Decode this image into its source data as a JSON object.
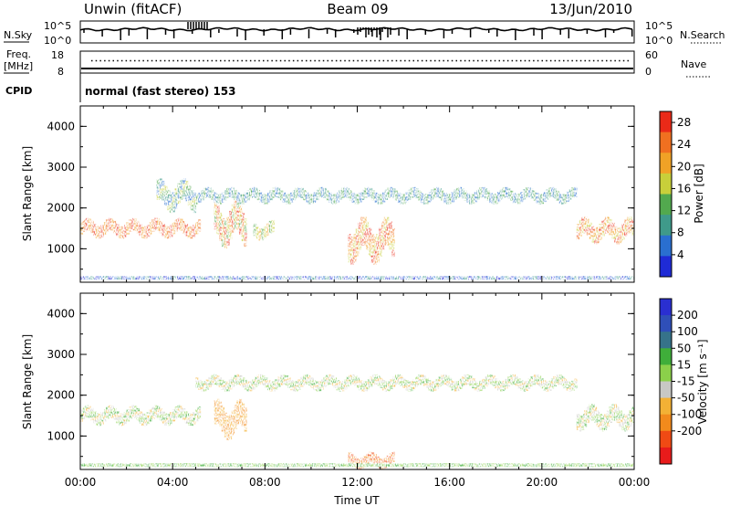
{
  "header": {
    "station": "Unwin (fitACF)",
    "beam": "Beam 09",
    "date": "13/Jun/2010"
  },
  "top_panels": {
    "nsky": {
      "label": "N.Sky",
      "ticks": [
        "10^5",
        "10^0"
      ]
    },
    "nsearch": {
      "label": "N.Search",
      "ticks": [
        "10^5",
        "10^0"
      ]
    },
    "freq": {
      "label_line1": "Freq.",
      "label_line2": "[MHz]",
      "ticks": [
        "18",
        "8"
      ]
    },
    "nave": {
      "label": "Nave",
      "ticks": [
        "60",
        "0"
      ]
    },
    "cpid": {
      "label": "CPID",
      "value": "normal (fast stereo) 153"
    }
  },
  "colors": {
    "power": [
      "#1f2bd6",
      "#2a6fd0",
      "#3f9a8a",
      "#52a94e",
      "#c8cf3a",
      "#f0a226",
      "#f07020",
      "#ea2a18"
    ],
    "velocity": [
      "#e81b1b",
      "#f04a14",
      "#f28a1c",
      "#f3b135",
      "#c8c8c4",
      "#8bd04a",
      "#3fae3a",
      "#36738a",
      "#2f4fb8",
      "#2a2fd1"
    ]
  },
  "chart_data": [
    {
      "type": "heatmap",
      "name": "power",
      "ylabel": "Slant Range [km]",
      "xlim": [
        "00:00",
        "24:00"
      ],
      "ylim": [
        180,
        4500
      ],
      "yticks": [
        "1000",
        "2000",
        "3000",
        "4000"
      ],
      "colorbar": {
        "label": "Power [dB]",
        "ticks": [
          "4",
          "8",
          "12",
          "16",
          "20",
          "24",
          "28"
        ],
        "range": [
          0,
          30
        ]
      },
      "echo_regions": [
        {
          "t0": 0.0,
          "t1": 5.2,
          "r_center": 1500,
          "r_width": 300,
          "level": "20-28"
        },
        {
          "t0": 3.3,
          "t1": 5.0,
          "r_center": 2300,
          "r_width": 500,
          "level": "4-16"
        },
        {
          "t0": 5.8,
          "t1": 7.2,
          "r_center": 1600,
          "r_width": 700,
          "level": "12-28"
        },
        {
          "t0": 7.5,
          "t1": 8.4,
          "r_center": 1450,
          "r_width": 300,
          "level": "12-20"
        },
        {
          "t0": 11.6,
          "t1": 13.6,
          "r_center": 1200,
          "r_width": 700,
          "level": "16-28"
        },
        {
          "t0": 5.0,
          "t1": 21.5,
          "r_center": 2300,
          "r_width": 250,
          "level": "4-12"
        },
        {
          "t0": 21.5,
          "t1": 24.0,
          "r_center": 1450,
          "r_width": 400,
          "level": "16-28"
        }
      ]
    },
    {
      "type": "heatmap",
      "name": "velocity",
      "ylabel": "Slant Range [km]",
      "xlabel": "Time UT",
      "xlim": [
        "00:00",
        "24:00"
      ],
      "ylim": [
        180,
        4500
      ],
      "yticks": [
        "1000",
        "2000",
        "3000",
        "4000"
      ],
      "xticks": [
        "00:00",
        "04:00",
        "08:00",
        "12:00",
        "16:00",
        "20:00",
        "00:00"
      ],
      "colorbar": {
        "label": "Velocity [m s⁻¹]",
        "ticks": [
          "200",
          "100",
          "50",
          "15",
          "-15",
          "-50",
          "-100",
          "-200"
        ],
        "range": [
          -250,
          250
        ]
      },
      "echo_regions": [
        {
          "t0": 0.0,
          "t1": 5.2,
          "r_center": 1500,
          "r_width": 300,
          "level": "-15 to 15"
        },
        {
          "t0": 5.8,
          "t1": 7.2,
          "r_center": 1400,
          "r_width": 600,
          "level": "-50 to -15"
        },
        {
          "t0": 11.6,
          "t1": 13.6,
          "r_center": 400,
          "r_width": 250,
          "level": "-100 to -50"
        },
        {
          "t0": 5.0,
          "t1": 21.5,
          "r_center": 2300,
          "r_width": 250,
          "level": "-15 to 15"
        },
        {
          "t0": 21.5,
          "t1": 24.0,
          "r_center": 1450,
          "r_width": 400,
          "level": "-15 to 15"
        }
      ]
    }
  ]
}
